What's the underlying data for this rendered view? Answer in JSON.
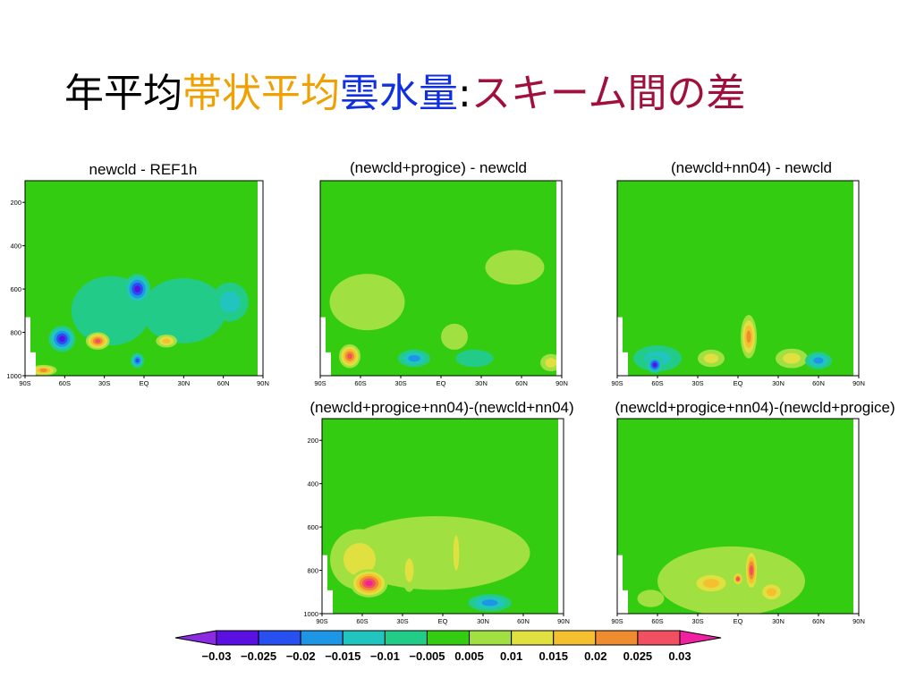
{
  "slide": {
    "title_parts": [
      {
        "text": "年平均",
        "color": "#000000"
      },
      {
        "text": "帯状平均",
        "color": "#f0a000"
      },
      {
        "text": "雲水量",
        "color": "#1030e0"
      },
      {
        "text": ":",
        "color": "#000000"
      },
      {
        "text": "スキーム間の差",
        "color": "#a0103c"
      }
    ]
  },
  "colors": {
    "background_field": "#33cc11",
    "levels": [
      "#8a2be2",
      "#5a10e0",
      "#2850f0",
      "#1e96e6",
      "#22c4c0",
      "#22cc88",
      "#33cc11",
      "#a0e040",
      "#e0e040",
      "#f4c030",
      "#f08c30",
      "#f05060",
      "#f020a0"
    ]
  },
  "chart_data": [
    {
      "type": "heatmap",
      "title": "newcld - REF1h",
      "x_ticks": [
        "90S",
        "60S",
        "30S",
        "EQ",
        "30N",
        "60N",
        "90N"
      ],
      "y_ticks": [
        "200",
        "400",
        "600",
        "800",
        "1000"
      ],
      "xlim": [
        -90,
        90
      ],
      "ylim": [
        1000,
        100
      ],
      "y_scale": "pressure",
      "features": [
        {
          "lat": -25,
          "p": 700,
          "value": -0.005,
          "lat_w": 30,
          "p_h": 320
        },
        {
          "lat": 30,
          "p": 700,
          "value": -0.005,
          "lat_w": 32,
          "p_h": 300
        },
        {
          "lat": -5,
          "p": 600,
          "value": -0.025,
          "lat_w": 10,
          "p_h": 140
        },
        {
          "lat": -62,
          "p": 830,
          "value": -0.025,
          "lat_w": 10,
          "p_h": 120
        },
        {
          "lat": -35,
          "p": 840,
          "value": 0.025,
          "lat_w": 9,
          "p_h": 80
        },
        {
          "lat": 17,
          "p": 840,
          "value": 0.015,
          "lat_w": 8,
          "p_h": 60
        },
        {
          "lat": 65,
          "p": 660,
          "value": -0.01,
          "lat_w": 14,
          "p_h": 180
        },
        {
          "lat": -76,
          "p": 975,
          "value": 0.02,
          "lat_w": 10,
          "p_h": 50
        },
        {
          "lat": -5,
          "p": 930,
          "value": -0.02,
          "lat_w": 5,
          "p_h": 70
        }
      ]
    },
    {
      "type": "heatmap",
      "title": "(newcld+progice) - newcld",
      "x_ticks": [
        "90S",
        "60S",
        "30S",
        "EQ",
        "30N",
        "60N",
        "90N"
      ],
      "y_ticks": [],
      "xlim": [
        -90,
        90
      ],
      "ylim": [
        1000,
        100
      ],
      "y_scale": "pressure",
      "features": [
        {
          "lat": -55,
          "p": 660,
          "value": 0.005,
          "lat_w": 28,
          "p_h": 260
        },
        {
          "lat": 55,
          "p": 500,
          "value": 0.005,
          "lat_w": 22,
          "p_h": 160
        },
        {
          "lat": -68,
          "p": 910,
          "value": 0.025,
          "lat_w": 8,
          "p_h": 110
        },
        {
          "lat": -20,
          "p": 920,
          "value": -0.015,
          "lat_w": 12,
          "p_h": 80
        },
        {
          "lat": 25,
          "p": 920,
          "value": -0.005,
          "lat_w": 14,
          "p_h": 80
        },
        {
          "lat": 10,
          "p": 820,
          "value": 0.005,
          "lat_w": 10,
          "p_h": 120
        },
        {
          "lat": 82,
          "p": 940,
          "value": 0.01,
          "lat_w": 8,
          "p_h": 80
        }
      ]
    },
    {
      "type": "heatmap",
      "title": "(newcld+nn04) - newcld",
      "x_ticks": [
        "90S",
        "60S",
        "30S",
        "EQ",
        "30N",
        "60N",
        "90N"
      ],
      "y_ticks": [],
      "xlim": [
        -90,
        90
      ],
      "ylim": [
        1000,
        100
      ],
      "y_scale": "pressure",
      "features": [
        {
          "lat": -60,
          "p": 920,
          "value": -0.01,
          "lat_w": 18,
          "p_h": 120
        },
        {
          "lat": -62,
          "p": 950,
          "value": -0.025,
          "lat_w": 6,
          "p_h": 80
        },
        {
          "lat": 8,
          "p": 820,
          "value": 0.02,
          "lat_w": 6,
          "p_h": 200
        },
        {
          "lat": -20,
          "p": 920,
          "value": 0.01,
          "lat_w": 10,
          "p_h": 80
        },
        {
          "lat": 40,
          "p": 920,
          "value": 0.01,
          "lat_w": 12,
          "p_h": 90
        },
        {
          "lat": 60,
          "p": 930,
          "value": -0.015,
          "lat_w": 10,
          "p_h": 80
        }
      ]
    },
    {
      "type": "heatmap",
      "title": "(newcld+progice+nn04)-(newcld+nn04)",
      "x_ticks": [
        "90S",
        "60S",
        "30S",
        "EQ",
        "30N",
        "60N",
        "90N"
      ],
      "y_ticks": [
        "200",
        "400",
        "600",
        "800",
        "1000"
      ],
      "xlim": [
        -90,
        90
      ],
      "ylim": [
        1000,
        100
      ],
      "y_scale": "pressure",
      "features": [
        {
          "lat": -5,
          "p": 720,
          "value": 0.005,
          "lat_w": 70,
          "p_h": 340
        },
        {
          "lat": -62,
          "p": 750,
          "value": 0.01,
          "lat_w": 22,
          "p_h": 280
        },
        {
          "lat": -55,
          "p": 860,
          "value": 0.03,
          "lat_w": 14,
          "p_h": 130
        },
        {
          "lat": -25,
          "p": 800,
          "value": 0.01,
          "lat_w": 6,
          "p_h": 200
        },
        {
          "lat": 10,
          "p": 720,
          "value": 0.01,
          "lat_w": 4,
          "p_h": 300
        },
        {
          "lat": 35,
          "p": 950,
          "value": -0.015,
          "lat_w": 16,
          "p_h": 80
        }
      ]
    },
    {
      "type": "heatmap",
      "title": "(newcld+progice+nn04)-(newcld+progice)",
      "x_ticks": [
        "90S",
        "60S",
        "30S",
        "EQ",
        "30N",
        "60N",
        "90N"
      ],
      "y_ticks": [],
      "xlim": [
        -90,
        90
      ],
      "ylim": [
        1000,
        100
      ],
      "y_scale": "pressure",
      "features": [
        {
          "lat": -5,
          "p": 850,
          "value": 0.005,
          "lat_w": 55,
          "p_h": 320
        },
        {
          "lat": -20,
          "p": 860,
          "value": 0.015,
          "lat_w": 16,
          "p_h": 110
        },
        {
          "lat": 10,
          "p": 800,
          "value": 0.025,
          "lat_w": 5,
          "p_h": 200
        },
        {
          "lat": 0,
          "p": 840,
          "value": 0.025,
          "lat_w": 4,
          "p_h": 60
        },
        {
          "lat": 25,
          "p": 900,
          "value": 0.015,
          "lat_w": 10,
          "p_h": 100
        },
        {
          "lat": -65,
          "p": 930,
          "value": 0.005,
          "lat_w": 10,
          "p_h": 80
        }
      ]
    }
  ],
  "colorbar": {
    "labels": [
      "−0.03",
      "−0.025",
      "−0.02",
      "−0.015",
      "−0.01",
      "−0.005",
      "0.005",
      "0.01",
      "0.015",
      "0.02",
      "0.025",
      "0.03"
    ]
  }
}
